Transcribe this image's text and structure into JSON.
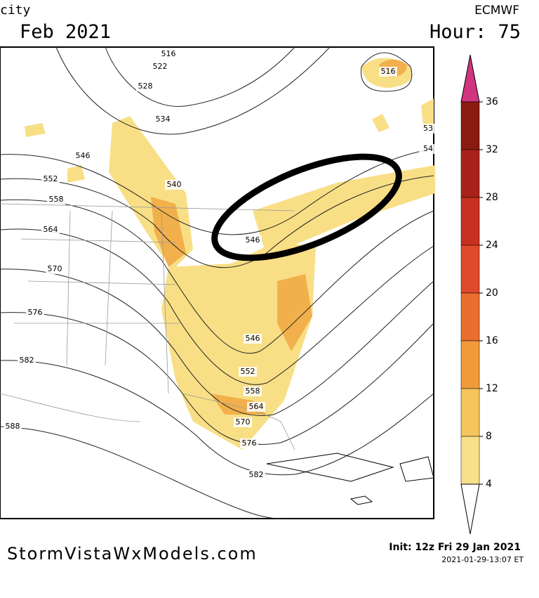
{
  "header": {
    "left_top": "city",
    "left_date": "Feb 2021",
    "model": "ECMWF",
    "hour": "Hour: 75"
  },
  "colorbar": {
    "ticks": [
      "36",
      "32",
      "28",
      "24",
      "20",
      "16",
      "12",
      "8",
      "4"
    ],
    "top_color": "#d0357f",
    "colors": [
      "#8b1a10",
      "#a8221a",
      "#c83020",
      "#e04a2a",
      "#ea6e2e",
      "#f09a3a",
      "#f5c45a",
      "#f8e08a"
    ]
  },
  "contour_labels": [
    "516",
    "522",
    "528",
    "534",
    "546",
    "552",
    "558",
    "564",
    "570",
    "576",
    "582",
    "588",
    "540",
    "546",
    "546",
    "552",
    "558",
    "564",
    "570",
    "576",
    "582",
    "516",
    "53",
    "54"
  ],
  "footer": {
    "site": "StormVistaWxModels.com",
    "init": "Init: 12z Fri 29 Jan 2021",
    "stamp": "2021-01-29-13:07 ET"
  }
}
